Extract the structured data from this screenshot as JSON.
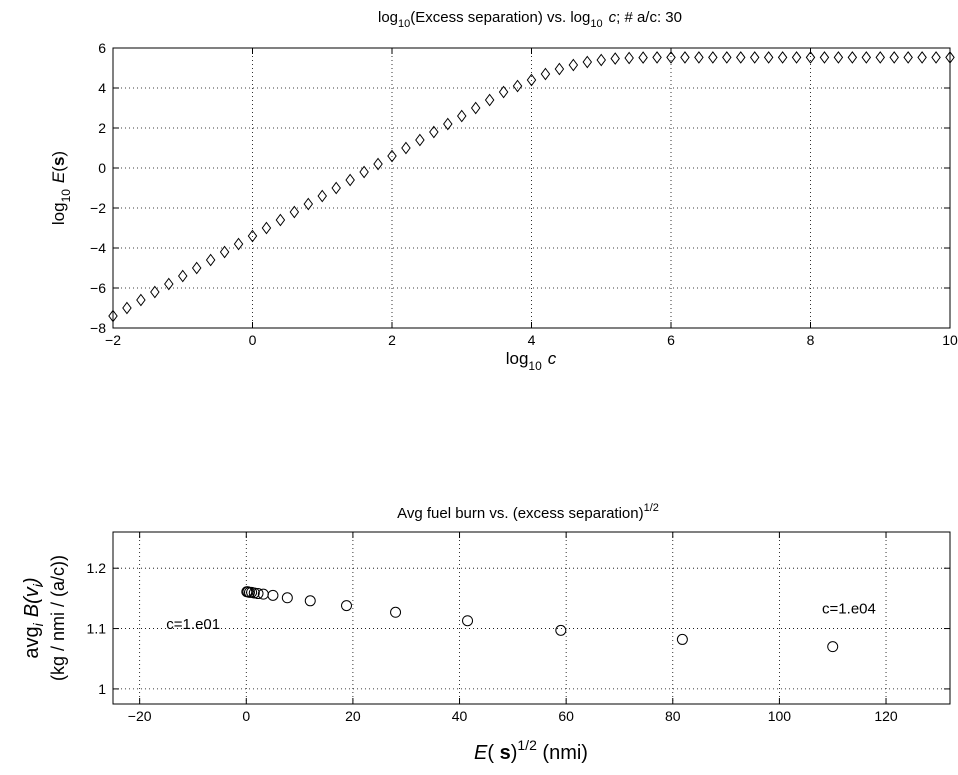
{
  "chart_data": [
    {
      "type": "scatter",
      "title_parts": [
        "log",
        "10",
        "(Excess separation) vs. log",
        "10",
        "c",
        "; # a/c: 30"
      ],
      "xlabel_parts": [
        "log",
        "10",
        "c"
      ],
      "ylabel_parts": [
        "log",
        "10",
        "E",
        "(",
        "s",
        ")"
      ],
      "xlim": [
        -2,
        10
      ],
      "ylim": [
        -8,
        6
      ],
      "xticks": [
        -2,
        0,
        2,
        4,
        6,
        8,
        10
      ],
      "yticks": [
        -8,
        -6,
        -4,
        -2,
        0,
        2,
        4,
        6
      ],
      "grid": true,
      "marker": "diamond",
      "x": [
        -2.0,
        -1.8,
        -1.6,
        -1.4,
        -1.2,
        -1.0,
        -0.8,
        -0.6,
        -0.4,
        -0.2,
        0.0,
        0.2,
        0.4,
        0.6,
        0.8,
        1.0,
        1.2,
        1.4,
        1.6,
        1.8,
        2.0,
        2.2,
        2.4,
        2.6,
        2.8,
        3.0,
        3.2,
        3.4,
        3.6,
        3.8,
        4.0,
        4.2,
        4.4,
        4.6,
        4.8,
        5.0,
        5.2,
        5.4,
        5.6,
        5.8,
        6.0,
        6.2,
        6.4,
        6.6,
        6.8,
        7.0,
        7.2,
        7.4,
        7.6,
        7.8,
        8.0,
        8.2,
        8.4,
        8.6,
        8.8,
        9.0,
        9.2,
        9.4,
        9.6,
        9.8,
        10.0
      ],
      "y": [
        -7.4,
        -7.0,
        -6.6,
        -6.2,
        -5.8,
        -5.4,
        -5.0,
        -4.6,
        -4.2,
        -3.8,
        -3.4,
        -3.0,
        -2.6,
        -2.2,
        -1.8,
        -1.4,
        -1.0,
        -0.6,
        -0.2,
        0.2,
        0.6,
        1.0,
        1.4,
        1.8,
        2.2,
        2.6,
        3.0,
        3.4,
        3.8,
        4.1,
        4.4,
        4.7,
        4.95,
        5.15,
        5.3,
        5.4,
        5.47,
        5.5,
        5.52,
        5.53,
        5.53,
        5.53,
        5.53,
        5.53,
        5.53,
        5.53,
        5.53,
        5.53,
        5.53,
        5.53,
        5.53,
        5.53,
        5.53,
        5.53,
        5.53,
        5.53,
        5.53,
        5.53,
        5.53,
        5.53,
        5.53
      ]
    },
    {
      "type": "scatter",
      "title_parts": [
        "Avg fuel burn vs. (excess separation)",
        "1/2"
      ],
      "xlabel_parts": [
        "E",
        "( ",
        "s",
        ")",
        "1/2",
        " (nmi)"
      ],
      "ylabel_line1_parts": [
        "avg",
        "i",
        "B(v",
        "i",
        ")"
      ],
      "ylabel_line2": "(kg / nmi / (a/c))",
      "xlim": [
        -25,
        132
      ],
      "ylim": [
        0.975,
        1.26
      ],
      "xticks": [
        -20,
        0,
        20,
        40,
        60,
        80,
        100,
        120
      ],
      "yticks": [
        1,
        1.1,
        1.2
      ],
      "ytick_labels": [
        "1",
        "1.1",
        "1.2"
      ],
      "grid": true,
      "marker": "circle",
      "x": [
        0.1,
        0.3,
        0.6,
        1.0,
        1.5,
        2.2,
        3.2,
        5.0,
        7.7,
        12.0,
        18.8,
        28.0,
        41.5,
        59.0,
        81.8,
        110.0
      ],
      "y": [
        1.161,
        1.161,
        1.16,
        1.16,
        1.159,
        1.158,
        1.157,
        1.155,
        1.151,
        1.146,
        1.138,
        1.127,
        1.113,
        1.097,
        1.082,
        1.07
      ],
      "annotations": [
        {
          "text": "c=1.e01",
          "x": -15,
          "y": 1.099
        },
        {
          "text": "c=1.e04",
          "x": 108,
          "y": 1.125
        }
      ]
    }
  ]
}
